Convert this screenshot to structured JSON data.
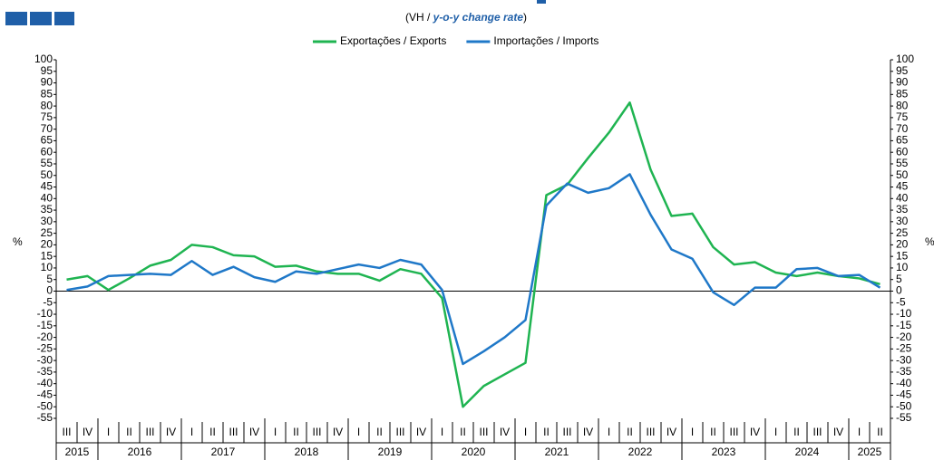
{
  "chart_data": {
    "type": "line",
    "subtitle": [
      "(VH / ",
      "y-o-y change rate",
      ")"
    ],
    "y_label": "%",
    "categories": [
      "III",
      "IV",
      "I",
      "II",
      "III",
      "IV",
      "I",
      "II",
      "III",
      "IV",
      "I",
      "II",
      "III",
      "IV",
      "I",
      "II",
      "III",
      "IV",
      "I",
      "II",
      "III",
      "IV",
      "I",
      "II",
      "III",
      "IV",
      "I",
      "II",
      "III",
      "IV",
      "I",
      "II",
      "III",
      "IV",
      "I",
      "II",
      "III",
      "IV",
      "I",
      "II"
    ],
    "years": [
      "2015",
      "2016",
      "2017",
      "2018",
      "2019",
      "2020",
      "2021",
      "2022",
      "2023",
      "2024",
      "2025"
    ],
    "series": [
      {
        "name": "Exportações / Exports",
        "color": "#1fb451",
        "values": [
          5,
          6.5,
          0.5,
          5.5,
          11,
          13.5,
          20,
          19,
          15.5,
          15,
          10.5,
          11,
          8.5,
          7.5,
          7.5,
          4.5,
          9.5,
          7.5,
          -3,
          -50,
          -41,
          -36,
          -31,
          41.5,
          46,
          57.5,
          68.5,
          81.5,
          52.5,
          32.5,
          33.5,
          19,
          11.5,
          12.5,
          8,
          6.5,
          8,
          6.5,
          5.5,
          3
        ]
      },
      {
        "name": "Importações / Imports",
        "color": "#1f78c8",
        "values": [
          0.5,
          2,
          6.5,
          7,
          7.5,
          7,
          13,
          7,
          10.5,
          6,
          4,
          8.5,
          7.5,
          9.5,
          11.5,
          10,
          13.5,
          11.5,
          0.5,
          -31.5,
          -26,
          -20,
          -12.5,
          37,
          46.5,
          42.5,
          44.5,
          50.5,
          33,
          18,
          14,
          -0.5,
          -6,
          1.5,
          1.5,
          9.5,
          10,
          6.5,
          7,
          1.5
        ]
      }
    ],
    "ylim": [
      -55,
      100
    ],
    "yticks": [
      100,
      95,
      90,
      85,
      80,
      75,
      70,
      65,
      60,
      55,
      50,
      45,
      40,
      35,
      30,
      25,
      20,
      15,
      10,
      5,
      0,
      -5,
      -10,
      -15,
      -20,
      -25,
      -30,
      -35,
      -40,
      -45,
      -50,
      -55
    ],
    "legend": "top",
    "grid": false
  }
}
